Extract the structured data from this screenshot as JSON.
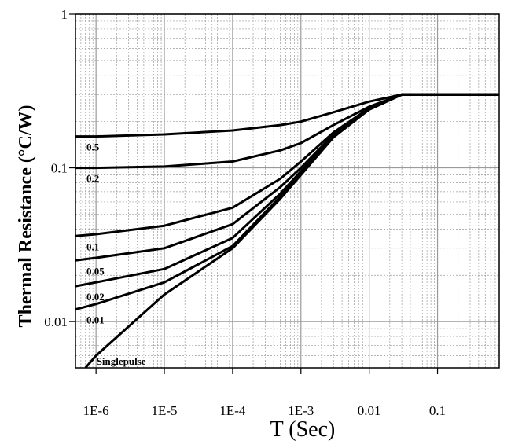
{
  "chart_data": {
    "type": "line",
    "title": "",
    "xlabel": "T (Sec)",
    "ylabel": "Thermal Resistance (°C/W)",
    "x_scale": "log",
    "y_scale": "log",
    "xlim": [
      5e-07,
      0.8
    ],
    "ylim": [
      0.005,
      1
    ],
    "grid": true,
    "x_ticks": [
      {
        "value": 1e-06,
        "label": "1E-6"
      },
      {
        "value": 1e-05,
        "label": "1E-5"
      },
      {
        "value": 0.0001,
        "label": "1E-4"
      },
      {
        "value": 0.001,
        "label": "1E-3"
      },
      {
        "value": 0.01,
        "label": "0.01"
      },
      {
        "value": 0.1,
        "label": "0.1"
      }
    ],
    "y_ticks": [
      {
        "value": 1,
        "label": "1"
      },
      {
        "value": 0.1,
        "label": "0.1"
      },
      {
        "value": 0.01,
        "label": "0.01"
      }
    ],
    "series": [
      {
        "name": "0.5",
        "x": [
          5e-07,
          1e-06,
          1e-05,
          0.0001,
          0.0005,
          0.001,
          0.003,
          0.01,
          0.03,
          0.1,
          0.8
        ],
        "y": [
          0.16,
          0.16,
          0.165,
          0.175,
          0.19,
          0.2,
          0.23,
          0.27,
          0.3,
          0.3,
          0.3
        ]
      },
      {
        "name": "0.2",
        "x": [
          5e-07,
          1e-06,
          1e-05,
          0.0001,
          0.0005,
          0.001,
          0.003,
          0.01,
          0.03,
          0.1,
          0.8
        ],
        "y": [
          0.1,
          0.1,
          0.102,
          0.11,
          0.13,
          0.145,
          0.19,
          0.25,
          0.3,
          0.3,
          0.3
        ]
      },
      {
        "name": "0.1",
        "x": [
          5e-07,
          1e-06,
          1e-05,
          0.0001,
          0.0005,
          0.001,
          0.003,
          0.01,
          0.03,
          0.1,
          0.8
        ],
        "y": [
          0.036,
          0.037,
          0.042,
          0.055,
          0.085,
          0.11,
          0.17,
          0.245,
          0.3,
          0.3,
          0.3
        ]
      },
      {
        "name": "0.05",
        "x": [
          5e-07,
          1e-06,
          1e-05,
          0.0001,
          0.0005,
          0.001,
          0.003,
          0.01,
          0.03,
          0.1,
          0.8
        ],
        "y": [
          0.025,
          0.026,
          0.03,
          0.043,
          0.075,
          0.1,
          0.165,
          0.24,
          0.3,
          0.3,
          0.3
        ]
      },
      {
        "name": "0.02",
        "x": [
          5e-07,
          1e-06,
          1e-05,
          0.0001,
          0.0005,
          0.001,
          0.003,
          0.01,
          0.03,
          0.1,
          0.8
        ],
        "y": [
          0.017,
          0.018,
          0.022,
          0.035,
          0.068,
          0.095,
          0.16,
          0.24,
          0.3,
          0.3,
          0.3
        ]
      },
      {
        "name": "0.01",
        "x": [
          5e-07,
          1e-06,
          1e-05,
          0.0001,
          0.0005,
          0.001,
          0.003,
          0.01,
          0.03,
          0.1,
          0.8
        ],
        "y": [
          0.012,
          0.013,
          0.018,
          0.031,
          0.065,
          0.092,
          0.16,
          0.24,
          0.3,
          0.3,
          0.3
        ]
      },
      {
        "name": "Singlepulse",
        "x": [
          7e-07,
          1e-06,
          1e-05,
          0.0001,
          0.0005,
          0.001,
          0.003,
          0.01,
          0.03,
          0.1,
          0.8
        ],
        "y": [
          0.005,
          0.006,
          0.015,
          0.03,
          0.063,
          0.09,
          0.158,
          0.24,
          0.3,
          0.3,
          0.3
        ]
      }
    ],
    "colors": {
      "plot_bg": "#ffffff",
      "grid": "#9a9a9a",
      "line": "#000000",
      "frame": "#000000"
    }
  }
}
